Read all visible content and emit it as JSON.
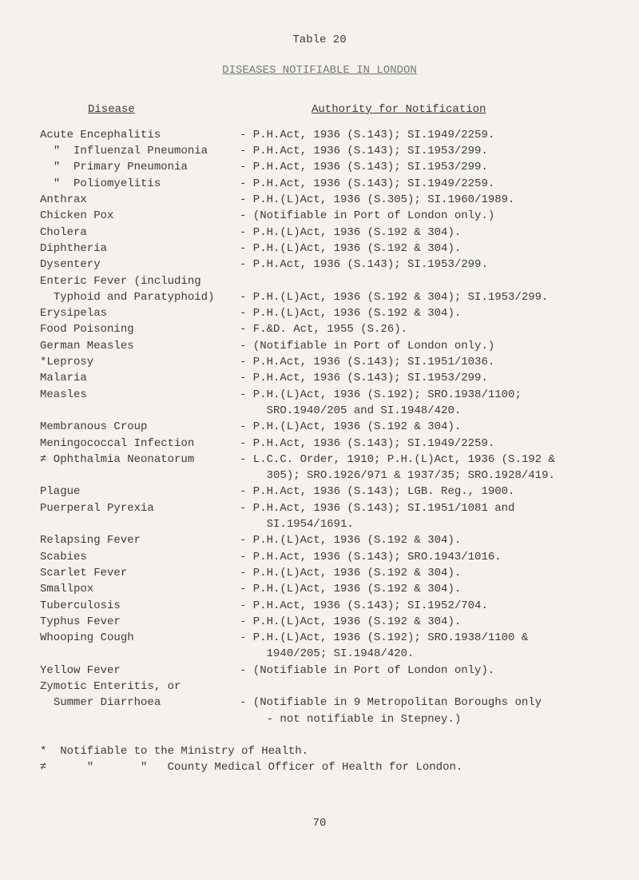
{
  "title": "Table 20",
  "subtitle": "DISEASES NOTIFIABLE IN LONDON",
  "headers": {
    "left": "Disease",
    "right": "Authority for Notification"
  },
  "rows": [
    {
      "disease": "Acute Encephalitis",
      "authority": "- P.H.Act, 1936 (S.143); SI.1949/2259."
    },
    {
      "disease": "  \"  Influenzal Pneumonia",
      "authority": "- P.H.Act, 1936 (S.143); SI.1953/299."
    },
    {
      "disease": "  \"  Primary Pneumonia",
      "authority": "- P.H.Act, 1936 (S.143); SI.1953/299."
    },
    {
      "disease": "  \"  Poliomyelitis",
      "authority": "- P.H.Act, 1936 (S.143); SI.1949/2259."
    },
    {
      "disease": "Anthrax",
      "authority": "- P.H.(L)Act, 1936 (S.305); SI.1960/1989."
    },
    {
      "disease": "Chicken Pox",
      "authority": "- (Notifiable in Port of London only.)"
    },
    {
      "disease": "Cholera",
      "authority": "- P.H.(L)Act, 1936 (S.192 & 304)."
    },
    {
      "disease": "Diphtheria",
      "authority": "- P.H.(L)Act, 1936 (S.192 & 304)."
    },
    {
      "disease": "Dysentery",
      "authority": "- P.H.Act, 1936 (S.143); SI.1953/299."
    },
    {
      "disease": "Enteric Fever (including",
      "authority": ""
    },
    {
      "disease": "  Typhoid and Paratyphoid)",
      "authority": "- P.H.(L)Act, 1936 (S.192 & 304); SI.1953/299."
    },
    {
      "disease": "Erysipelas",
      "authority": "- P.H.(L)Act, 1936 (S.192 & 304)."
    },
    {
      "disease": "Food Poisoning",
      "authority": "- F.&D. Act, 1955 (S.26)."
    },
    {
      "disease": "German Measles",
      "authority": "- (Notifiable in Port of London only.)"
    },
    {
      "disease": "*Leprosy",
      "authority": "- P.H.Act, 1936 (S.143); SI.1951/1036."
    },
    {
      "disease": "Malaria",
      "authority": "- P.H.Act, 1936 (S.143); SI.1953/299."
    },
    {
      "disease": "Measles",
      "authority": "- P.H.(L)Act, 1936 (S.192); SRO.1938/1100;\n    SRO.1940/205 and SI.1948/420."
    },
    {
      "disease": "Membranous Croup",
      "authority": "- P.H.(L)Act, 1936 (S.192 & 304)."
    },
    {
      "disease": "Meningococcal Infection",
      "authority": "- P.H.Act, 1936 (S.143); SI.1949/2259."
    },
    {
      "disease": "≠ Ophthalmia Neonatorum",
      "authority": "- L.C.C. Order, 1910; P.H.(L)Act, 1936 (S.192 &\n    305); SRO.1926/971 & 1937/35; SRO.1928/419."
    },
    {
      "disease": "Plague",
      "authority": "- P.H.Act, 1936 (S.143); LGB. Reg., 1900."
    },
    {
      "disease": "Puerperal Pyrexia",
      "authority": "- P.H.Act, 1936 (S.143); SI.1951/1081 and\n    SI.1954/1691."
    },
    {
      "disease": "Relapsing Fever",
      "authority": "- P.H.(L)Act, 1936 (S.192 & 304)."
    },
    {
      "disease": "Scabies",
      "authority": "- P.H.Act, 1936 (S.143); SRO.1943/1016."
    },
    {
      "disease": "Scarlet Fever",
      "authority": "- P.H.(L)Act, 1936 (S.192 & 304)."
    },
    {
      "disease": "Smallpox",
      "authority": "- P.H.(L)Act, 1936 (S.192 & 304)."
    },
    {
      "disease": "Tuberculosis",
      "authority": "- P.H.Act, 1936 (S.143); SI.1952/704."
    },
    {
      "disease": "Typhus Fever",
      "authority": "- P.H.(L)Act, 1936 (S.192 & 304)."
    },
    {
      "disease": "Whooping Cough",
      "authority": "- P.H.(L)Act, 1936 (S.192); SRO.1938/1100 &\n    1940/205; SI.1948/420."
    },
    {
      "disease": "Yellow Fever",
      "authority": "- (Notifiable in Port of London only)."
    },
    {
      "disease": "Zymotic Enteritis, or",
      "authority": ""
    },
    {
      "disease": "  Summer Diarrhoea",
      "authority": "- (Notifiable in 9 Metropolitan Boroughs only\n    - not notifiable in Stepney.)"
    }
  ],
  "footnotes": [
    "*  Notifiable to the Ministry of Health.",
    "≠      \"       \"   County Medical Officer of Health for London."
  ],
  "page_number": "70",
  "colors": {
    "background": "#f5f2ed",
    "text": "#3a3a3a",
    "faded": "#777777"
  },
  "typography": {
    "font_family": "Courier New",
    "font_size_pt": 11,
    "line_height": 1.45
  }
}
